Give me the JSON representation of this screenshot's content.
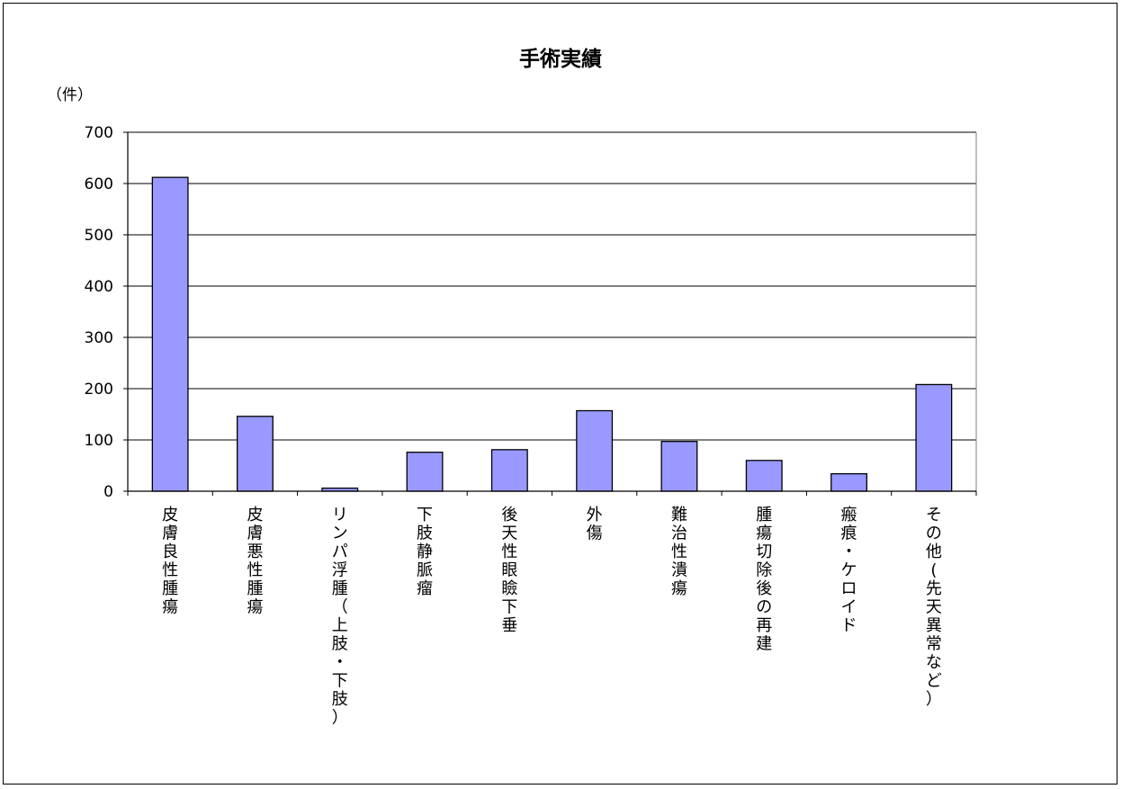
{
  "chart_data": {
    "type": "bar",
    "title": "手術実績",
    "ylabel": "（件）",
    "ylim": [
      0,
      700
    ],
    "yticks": [
      0,
      100,
      200,
      300,
      400,
      500,
      600,
      700
    ],
    "grid": true,
    "legend": "none",
    "bar_color": "#9999ff",
    "categories": [
      "皮膚良性腫瘍",
      "皮膚悪性腫瘍",
      "リンパ浮腫（上肢・下肢）",
      "下肢静脈瘤",
      "後天性眼瞼下垂",
      "外傷",
      "難治性潰瘍",
      "腫瘍切除後の再建",
      "瘢痕・ケロイド",
      "その他(先天異常など）"
    ],
    "values": [
      612,
      146,
      6,
      76,
      81,
      157,
      97,
      60,
      34,
      208
    ]
  }
}
